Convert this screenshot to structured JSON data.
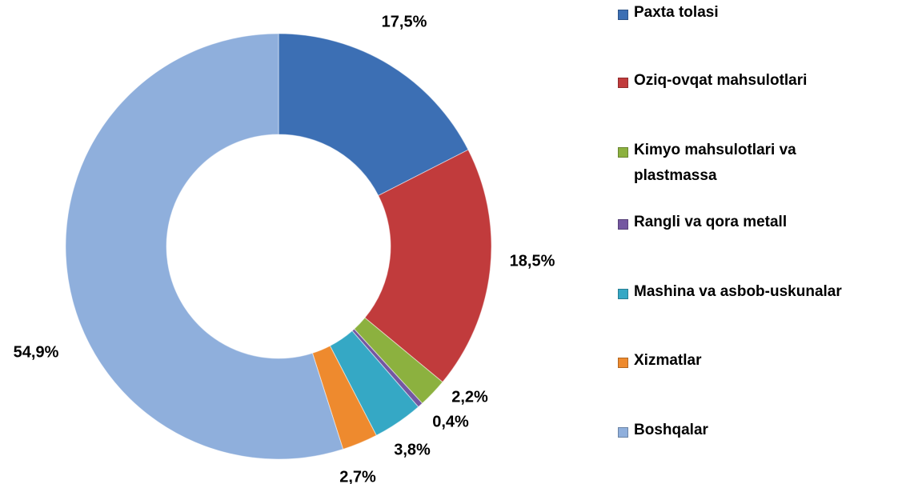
{
  "chart_data": {
    "type": "donut",
    "categories": [
      "Paxta tolasi",
      "Oziq-ovqat mahsulotlari",
      "Kimyo mahsulotlari va plastmassa",
      "Rangli va qora metall",
      "Mashina va asbob-uskunalar",
      "Xizmatlar",
      "Boshqalar"
    ],
    "values": [
      17.5,
      18.5,
      2.2,
      0.4,
      3.8,
      2.7,
      54.9
    ],
    "value_labels": [
      "17,5%",
      "18,5%",
      "2,2%",
      "0,4%",
      "3,8%",
      "2,7%",
      "54,9%"
    ],
    "colors": [
      "#3c6fb4",
      "#c13b3c",
      "#8cb13f",
      "#7457a1",
      "#35a8c5",
      "#ee8a2e",
      "#8fafdc"
    ],
    "legend": "right"
  }
}
